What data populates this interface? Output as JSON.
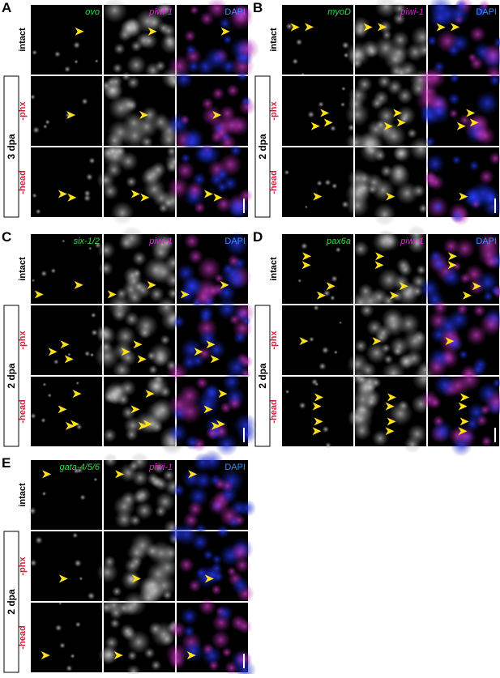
{
  "panels": [
    {
      "letter": "A",
      "columns": [
        "ovo",
        "piwi-1",
        "DAPI"
      ],
      "rows": [
        "intact",
        "-phx",
        "-head"
      ],
      "timepoint": "3 dpa"
    },
    {
      "letter": "B",
      "columns": [
        "myoD",
        "piwi-1",
        "DAPI"
      ],
      "rows": [
        "intact",
        "-phx",
        "-head"
      ],
      "timepoint": "2 dpa"
    },
    {
      "letter": "C",
      "columns": [
        "six-1/2",
        "piwi-1",
        "DAPI"
      ],
      "rows": [
        "intact",
        "-phx",
        "-head"
      ],
      "timepoint": "2 dpa"
    },
    {
      "letter": "D",
      "columns": [
        "pax6a",
        "piwi-1",
        "DAPI"
      ],
      "rows": [
        "intact",
        "-phx",
        "-head"
      ],
      "timepoint": "2 dpa"
    },
    {
      "letter": "E",
      "columns": [
        "gata-4/5/6",
        "piwi-1",
        "DAPI"
      ],
      "rows": [
        "intact",
        "-phx",
        "-head"
      ],
      "timepoint": "2 dpa"
    }
  ]
}
